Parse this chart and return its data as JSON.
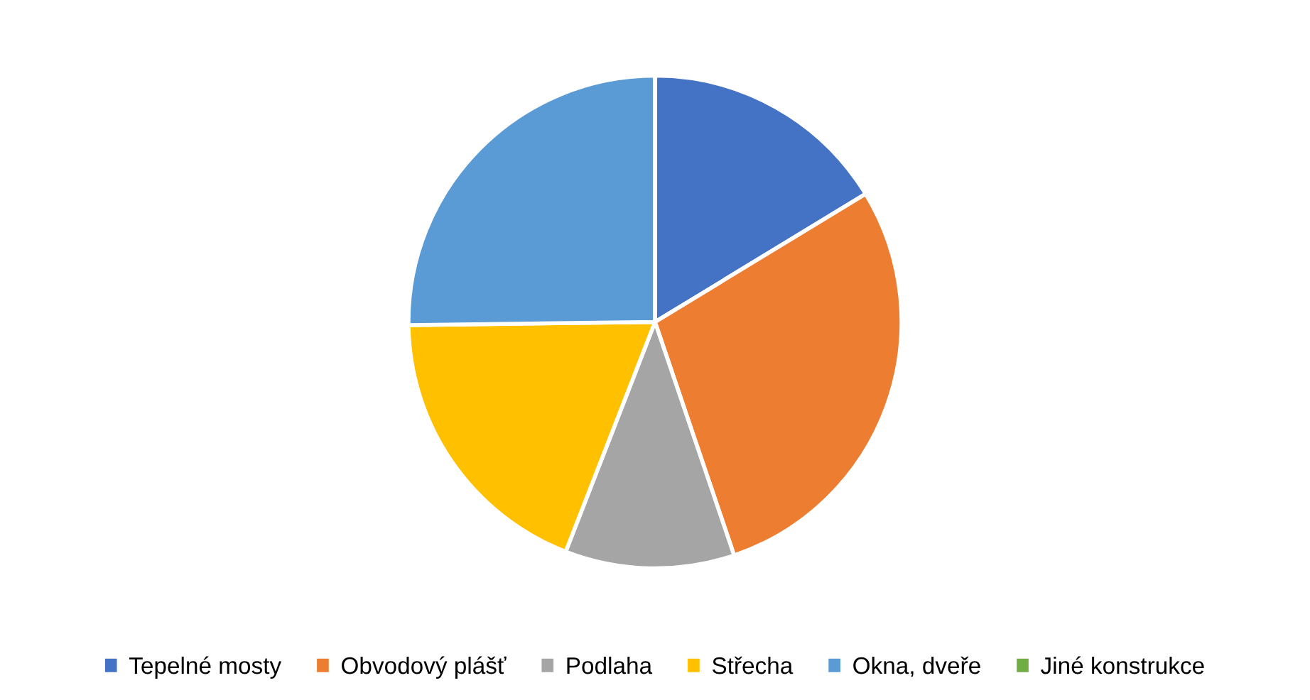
{
  "chart_data": {
    "type": "pie",
    "categories": [
      "Tepelné mosty",
      "Obvodový plášť",
      "Podlaha",
      "Střecha",
      "Okna, dveře",
      "Jiné konstrukce"
    ],
    "values": [
      16.3,
      28.5,
      11.1,
      18.9,
      25.2,
      0
    ],
    "colors": [
      "#4472c4",
      "#ed7d31",
      "#a5a5a5",
      "#ffc000",
      "#5b9bd5",
      "#70ad47"
    ],
    "legend": "bottom"
  }
}
